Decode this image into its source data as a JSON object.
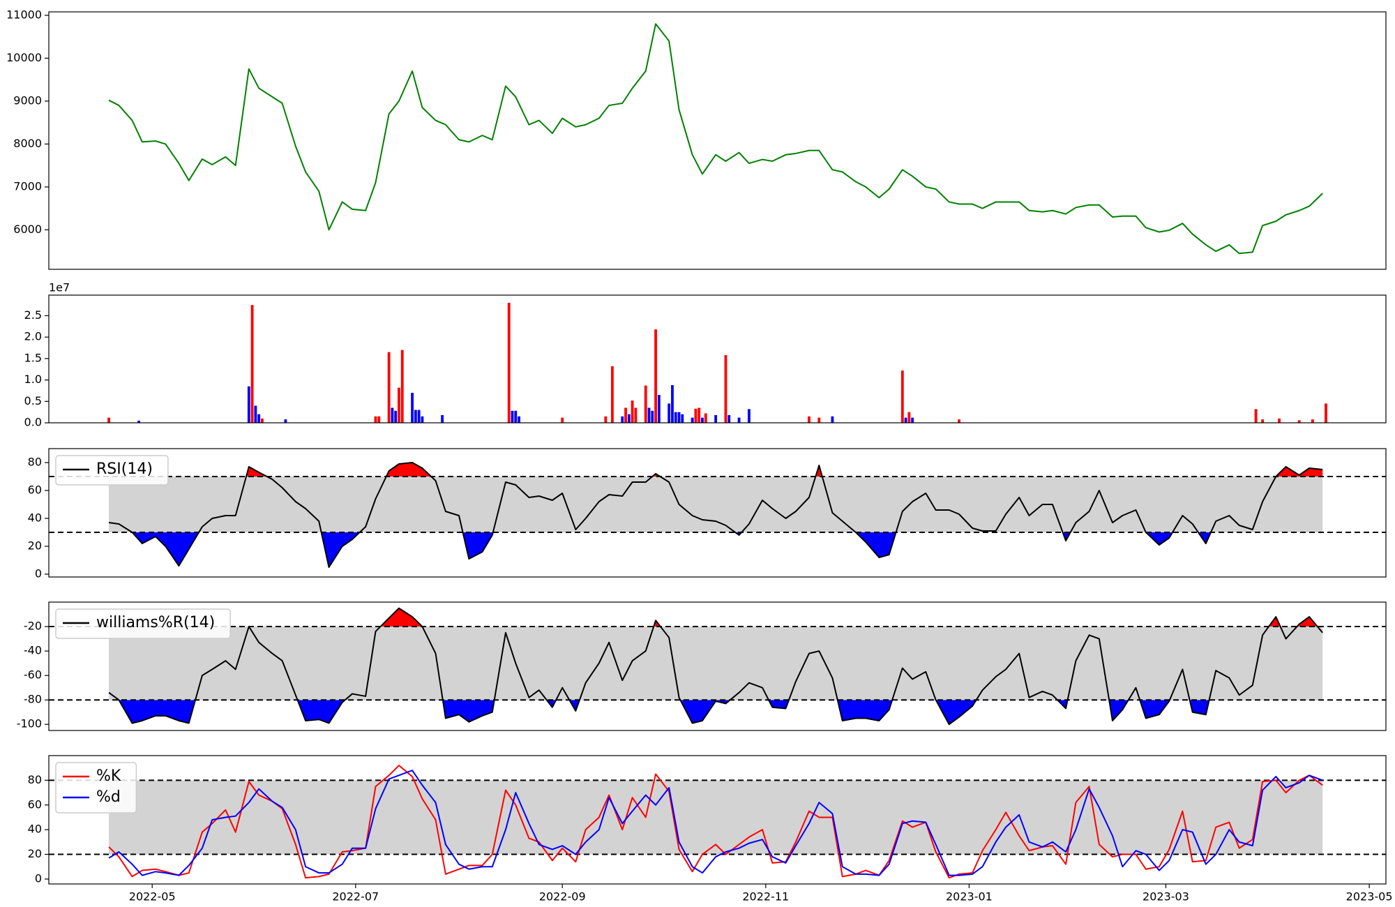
{
  "chart_data": {
    "type": "multi",
    "xlim": [
      "2022-03-31",
      "2023-05-06"
    ],
    "xticks": [
      "2022-05",
      "2022-07",
      "2022-09",
      "2022-11",
      "2023-01",
      "2023-03",
      "2023-05"
    ],
    "x": [
      "2022-04-18",
      "2022-04-21",
      "2022-04-25",
      "2022-04-28",
      "2022-05-02",
      "2022-05-05",
      "2022-05-09",
      "2022-05-12",
      "2022-05-16",
      "2022-05-19",
      "2022-05-23",
      "2022-05-26",
      "2022-05-30",
      "2022-06-02",
      "2022-06-06",
      "2022-06-09",
      "2022-06-13",
      "2022-06-16",
      "2022-06-20",
      "2022-06-23",
      "2022-06-27",
      "2022-06-30",
      "2022-07-04",
      "2022-07-07",
      "2022-07-11",
      "2022-07-14",
      "2022-07-18",
      "2022-07-21",
      "2022-07-25",
      "2022-07-28",
      "2022-08-01",
      "2022-08-04",
      "2022-08-08",
      "2022-08-11",
      "2022-08-15",
      "2022-08-18",
      "2022-08-22",
      "2022-08-25",
      "2022-08-29",
      "2022-09-01",
      "2022-09-05",
      "2022-09-08",
      "2022-09-12",
      "2022-09-15",
      "2022-09-19",
      "2022-09-22",
      "2022-09-26",
      "2022-09-29",
      "2022-10-03",
      "2022-10-06",
      "2022-10-10",
      "2022-10-13",
      "2022-10-17",
      "2022-10-20",
      "2022-10-24",
      "2022-10-27",
      "2022-10-31",
      "2022-11-03",
      "2022-11-07",
      "2022-11-10",
      "2022-11-14",
      "2022-11-17",
      "2022-11-21",
      "2022-11-24",
      "2022-11-28",
      "2022-12-01",
      "2022-12-05",
      "2022-12-08",
      "2022-12-12",
      "2022-12-15",
      "2022-12-19",
      "2022-12-22",
      "2022-12-26",
      "2022-12-29",
      "2023-01-02",
      "2023-01-05",
      "2023-01-09",
      "2023-01-12",
      "2023-01-16",
      "2023-01-19",
      "2023-01-23",
      "2023-01-26",
      "2023-01-30",
      "2023-02-02",
      "2023-02-06",
      "2023-02-09",
      "2023-02-13",
      "2023-02-16",
      "2023-02-20",
      "2023-02-23",
      "2023-02-27",
      "2023-03-02",
      "2023-03-06",
      "2023-03-09",
      "2023-03-13",
      "2023-03-16",
      "2023-03-20",
      "2023-03-23",
      "2023-03-27",
      "2023-03-30",
      "2023-04-03",
      "2023-04-06",
      "2023-04-10",
      "2023-04-13",
      "2023-04-17"
    ],
    "panels": [
      {
        "type": "line",
        "ylim": [
          5080,
          11080
        ],
        "yticks": [
          6000,
          7000,
          8000,
          9000,
          10000,
          11000
        ],
        "series": [
          {
            "color": "green",
            "values": [
              9020,
              8900,
              8550,
              8050,
              8070,
              8000,
              7550,
              7150,
              7650,
              7520,
              7700,
              7500,
              9750,
              9300,
              9100,
              8950,
              7950,
              7350,
              6900,
              6000,
              6650,
              6480,
              6450,
              7100,
              8700,
              9000,
              9700,
              8850,
              8550,
              8450,
              8100,
              8050,
              8200,
              8100,
              9350,
              9100,
              8450,
              8550,
              8250,
              8600,
              8400,
              8450,
              8600,
              8900,
              8950,
              9300,
              9700,
              10800,
              10400,
              8800,
              7750,
              7300,
              7750,
              7600,
              7800,
              7550,
              7640,
              7600,
              7750,
              7780,
              7850,
              7850,
              7400,
              7350,
              7120,
              7000,
              6750,
              6950,
              7400,
              7250,
              7000,
              6950,
              6650,
              6600,
              6600,
              6500,
              6650,
              6650,
              6650,
              6450,
              6420,
              6450,
              6370,
              6520,
              6580,
              6580,
              6300,
              6320,
              6320,
              6050,
              5950,
              5990,
              6150,
              5900,
              5650,
              5500,
              5650,
              5450,
              5480,
              6100,
              6200,
              6350,
              6450,
              6550,
              6850
            ]
          }
        ]
      },
      {
        "type": "bar",
        "ylim": [
          0,
          29800000
        ],
        "offset_text": "1e7",
        "yticks": [
          {
            "value": 0,
            "label": "0.0"
          },
          {
            "value": 5000000,
            "label": "0.5"
          },
          {
            "value": 10000000,
            "label": "1.0"
          },
          {
            "value": 15000000,
            "label": "1.5"
          },
          {
            "value": 20000000,
            "label": "2.0"
          },
          {
            "value": 25000000,
            "label": "2.5"
          }
        ],
        "x": [
          "2022-04-18",
          "2022-04-27",
          "2022-05-30",
          "2022-05-31",
          "2022-06-01",
          "2022-06-02",
          "2022-06-03",
          "2022-06-10",
          "2022-07-07",
          "2022-07-08",
          "2022-07-11",
          "2022-07-12",
          "2022-07-13",
          "2022-07-14",
          "2022-07-15",
          "2022-07-18",
          "2022-07-19",
          "2022-07-20",
          "2022-07-21",
          "2022-07-27",
          "2022-08-16",
          "2022-08-17",
          "2022-08-18",
          "2022-08-19",
          "2022-09-01",
          "2022-09-14",
          "2022-09-16",
          "2022-09-19",
          "2022-09-20",
          "2022-09-21",
          "2022-09-22",
          "2022-09-23",
          "2022-09-26",
          "2022-09-27",
          "2022-09-28",
          "2022-09-29",
          "2022-09-30",
          "2022-10-03",
          "2022-10-04",
          "2022-10-05",
          "2022-10-06",
          "2022-10-07",
          "2022-10-10",
          "2022-10-11",
          "2022-10-12",
          "2022-10-13",
          "2022-10-14",
          "2022-10-17",
          "2022-10-20",
          "2022-10-21",
          "2022-10-24",
          "2022-10-27",
          "2022-11-14",
          "2022-11-17",
          "2022-11-21",
          "2022-12-12",
          "2022-12-13",
          "2022-12-14",
          "2022-12-15",
          "2022-12-29",
          "2023-03-28",
          "2023-03-30",
          "2023-04-04",
          "2023-04-10",
          "2023-04-14",
          "2023-04-18"
        ],
        "values": [
          1200000,
          500000,
          8500000,
          27500000,
          4000000,
          2000000,
          1000000,
          800000,
          1500000,
          1500000,
          16500000,
          3500000,
          2800000,
          8200000,
          17000000,
          7000000,
          3000000,
          3000000,
          1500000,
          1800000,
          28000000,
          2800000,
          2800000,
          1500000,
          1200000,
          1500000,
          13200000,
          1500000,
          3500000,
          2000000,
          5200000,
          3500000,
          8700000,
          3500000,
          2800000,
          21800000,
          6500000,
          4500000,
          8800000,
          2500000,
          2500000,
          2000000,
          1200000,
          3300000,
          3500000,
          1200000,
          2200000,
          1800000,
          15800000,
          1800000,
          1200000,
          3200000,
          1500000,
          1200000,
          1500000,
          12200000,
          1200000,
          2500000,
          1200000,
          800000,
          3200000,
          800000,
          1000000,
          600000,
          800000,
          4500000
        ],
        "colors": [
          "red",
          "blue",
          "blue",
          "red",
          "blue",
          "blue",
          "red",
          "blue",
          "red",
          "red",
          "red",
          "blue",
          "blue",
          "red",
          "red",
          "blue",
          "blue",
          "blue",
          "blue",
          "blue",
          "red",
          "blue",
          "blue",
          "blue",
          "red",
          "red",
          "red",
          "blue",
          "red",
          "blue",
          "red",
          "red",
          "red",
          "blue",
          "blue",
          "red",
          "blue",
          "blue",
          "blue",
          "blue",
          "blue",
          "blue",
          "blue",
          "red",
          "red",
          "blue",
          "red",
          "blue",
          "red",
          "blue",
          "blue",
          "blue",
          "red",
          "red",
          "blue",
          "red",
          "blue",
          "red",
          "blue",
          "red",
          "red",
          "red",
          "red",
          "red",
          "red",
          "red"
        ]
      },
      {
        "type": "line",
        "ylim": [
          -2,
          90
        ],
        "yticks": [
          0,
          20,
          40,
          60,
          80
        ],
        "thresholds": [
          30,
          70
        ],
        "legend": "upper left",
        "fill_colors": {
          "band": "lightgrey",
          "above": "red",
          "below": "blue"
        },
        "series": [
          {
            "name": "RSI(14)",
            "color": "black",
            "values": [
              37,
              36,
              30,
              22,
              27,
              20,
              6,
              18,
              34,
              40,
              42,
              42,
              77,
              73,
              68,
              62,
              52,
              47,
              38,
              5,
              20,
              25,
              34,
              54,
              74,
              79,
              80,
              76,
              67,
              45,
              42,
              11,
              16,
              28,
              66,
              64,
              55,
              56,
              53,
              58,
              32,
              40,
              52,
              57,
              56,
              66,
              66,
              72,
              66,
              50,
              42,
              39,
              38,
              35,
              28,
              36,
              53,
              47,
              40,
              45,
              55,
              78,
              44,
              38,
              30,
              23,
              12,
              14,
              45,
              52,
              58,
              46,
              46,
              43,
              33,
              31,
              31,
              43,
              55,
              42,
              50,
              50,
              24,
              37,
              45,
              60,
              37,
              42,
              46,
              30,
              21,
              26,
              42,
              36,
              22,
              38,
              42,
              35,
              32,
              52,
              70,
              77,
              71,
              76,
              75
            ]
          }
        ]
      },
      {
        "type": "line",
        "ylim": [
          -105,
          0
        ],
        "yticks": [
          -100,
          -80,
          -60,
          -40,
          -20
        ],
        "thresholds": [
          -80,
          -20
        ],
        "legend": "upper left",
        "fill_colors": {
          "band": "lightgrey",
          "above": "red",
          "below": "blue"
        },
        "series": [
          {
            "name": "williams%R(14)",
            "color": "black",
            "values": [
              -74,
              -80,
              -99,
              -97,
              -93,
              -93,
              -97,
              -99,
              -60,
              -55,
              -48,
              -55,
              -20,
              -33,
              -42,
              -48,
              -76,
              -97,
              -96,
              -99,
              -82,
              -75,
              -77,
              -24,
              -13,
              -5,
              -12,
              -20,
              -42,
              -95,
              -92,
              -98,
              -93,
              -90,
              -25,
              -50,
              -78,
              -72,
              -86,
              -70,
              -89,
              -66,
              -50,
              -33,
              -64,
              -48,
              -40,
              -15,
              -29,
              -78,
              -99,
              -97,
              -81,
              -83,
              -74,
              -66,
              -70,
              -86,
              -87,
              -65,
              -42,
              -40,
              -62,
              -97,
              -95,
              -95,
              -97,
              -88,
              -54,
              -63,
              -57,
              -80,
              -100,
              -94,
              -85,
              -72,
              -61,
              -55,
              -42,
              -78,
              -73,
              -76,
              -87,
              -48,
              -27,
              -30,
              -97,
              -88,
              -70,
              -95,
              -92,
              -81,
              -55,
              -90,
              -92,
              -56,
              -62,
              -76,
              -68,
              -27,
              -12,
              -30,
              -18,
              -12,
              -25
            ]
          }
        ]
      },
      {
        "type": "line",
        "ylim": [
          -4,
          100
        ],
        "yticks": [
          0,
          20,
          40,
          60,
          80
        ],
        "thresholds": [
          20,
          80
        ],
        "legend": "upper left",
        "fill_colors": {
          "band": "lightgrey"
        },
        "series": [
          {
            "name": "%K",
            "color": "red",
            "values": [
              26,
              18,
              2,
              7,
              8,
              6,
              3,
              5,
              38,
              45,
              56,
              38,
              79,
              68,
              63,
              57,
              28,
              1,
              2,
              4,
              22,
              23,
              25,
              75,
              84,
              92,
              83,
              65,
              48,
              4,
              8,
              11,
              11,
              20,
              72,
              60,
              33,
              30,
              15,
              25,
              14,
              40,
              50,
              68,
              40,
              66,
              50,
              85,
              71,
              24,
              6,
              20,
              28,
              20,
              28,
              34,
              40,
              13,
              14,
              30,
              55,
              50,
              50,
              2,
              4,
              7,
              3,
              15,
              47,
              42,
              46,
              22,
              1,
              4,
              5,
              23,
              40,
              54,
              35,
              23,
              26,
              27,
              12,
              62,
              75,
              28,
              18,
              20,
              20,
              8,
              10,
              24,
              55,
              14,
              15,
              42,
              46,
              25,
              32,
              79,
              80,
              70,
              80,
              84,
              76
            ]
          },
          {
            "name": "%d",
            "color": "blue",
            "values": [
              17,
              22,
              12,
              3,
              6,
              5,
              3,
              11,
              25,
              48,
              50,
              51,
              62,
              73,
              63,
              58,
              40,
              10,
              5,
              5,
              12,
              25,
              25,
              57,
              81,
              84,
              88,
              76,
              62,
              28,
              12,
              8,
              10,
              10,
              40,
              70,
              45,
              28,
              24,
              27,
              20,
              30,
              40,
              66,
              45,
              55,
              68,
              60,
              74,
              30,
              10,
              5,
              18,
              22,
              25,
              29,
              32,
              18,
              13,
              27,
              45,
              62,
              53,
              10,
              4,
              4,
              3,
              12,
              45,
              47,
              46,
              28,
              3,
              3,
              4,
              10,
              30,
              42,
              52,
              30,
              26,
              30,
              22,
              40,
              73,
              58,
              35,
              10,
              23,
              20,
              7,
              15,
              40,
              38,
              12,
              20,
              40,
              30,
              27,
              72,
              83,
              74,
              78,
              84,
              80
            ]
          }
        ]
      }
    ]
  }
}
